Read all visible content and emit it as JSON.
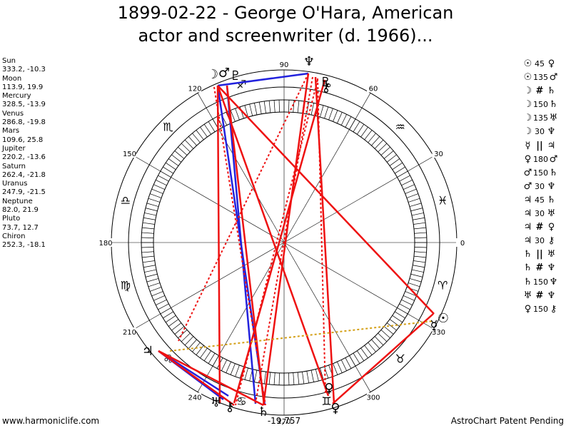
{
  "title": {
    "line1": "1899-02-22 - George O'Hara, American",
    "line2": "actor and screenwriter (d. 1966)..."
  },
  "planets": [
    {
      "name": "Sun",
      "pos": "333.2, -10.3"
    },
    {
      "name": "Moon",
      "pos": "113.9, 19.9"
    },
    {
      "name": "Mercury",
      "pos": "328.5, -13.9"
    },
    {
      "name": "Venus",
      "pos": "286.8, -19.8"
    },
    {
      "name": "Mars",
      "pos": "109.6, 25.8"
    },
    {
      "name": "Jupiter",
      "pos": "220.2, -13.6"
    },
    {
      "name": "Saturn",
      "pos": "262.4, -21.8"
    },
    {
      "name": "Uranus",
      "pos": "247.9, -21.5"
    },
    {
      "name": "Neptune",
      "pos": "82.0, 21.9"
    },
    {
      "name": "Pluto",
      "pos": "73.7, 12.7"
    },
    {
      "name": "Chiron",
      "pos": "252.3, -18.1"
    }
  ],
  "aspects": [
    {
      "p1": "☉",
      "angle": "45",
      "p2": "♀"
    },
    {
      "p1": "☉",
      "angle": "135",
      "p2": "♂"
    },
    {
      "p1": "☽",
      "angle": "#",
      "p2": "♄"
    },
    {
      "p1": "☽",
      "angle": "150",
      "p2": "♄"
    },
    {
      "p1": "☽",
      "angle": "135",
      "p2": "♅"
    },
    {
      "p1": "☽",
      "angle": "30",
      "p2": "♆"
    },
    {
      "p1": "☿",
      "angle": "||",
      "p2": "♃"
    },
    {
      "p1": "♀",
      "angle": "180",
      "p2": "♂"
    },
    {
      "p1": "♂",
      "angle": "150",
      "p2": "♄"
    },
    {
      "p1": "♂",
      "angle": "30",
      "p2": "♆"
    },
    {
      "p1": "♃",
      "angle": "45",
      "p2": "♄"
    },
    {
      "p1": "♃",
      "angle": "30",
      "p2": "♅"
    },
    {
      "p1": "♃",
      "angle": "#",
      "p2": "♀"
    },
    {
      "p1": "♃",
      "angle": "30",
      "p2": "⚷"
    },
    {
      "p1": "♄",
      "angle": "||",
      "p2": "♅"
    },
    {
      "p1": "♄",
      "angle": "#",
      "p2": "♆"
    },
    {
      "p1": "♄",
      "angle": "150",
      "p2": "♆"
    },
    {
      "p1": "♅",
      "angle": "#",
      "p2": "♆"
    },
    {
      "p1": "♀",
      "angle": "150",
      "p2": "⚷"
    }
  ],
  "wheel": {
    "degree_labels": [
      "0",
      "30",
      "60",
      "90",
      "120",
      "150",
      "180",
      "210",
      "240",
      "270",
      "300",
      "330"
    ],
    "zodiac_signs": [
      "♓",
      "♒",
      "♑",
      "♐",
      "♏",
      "♎",
      "♍",
      "♌",
      "♋",
      "♊",
      "♉",
      "♈"
    ],
    "planet_glyphs": {
      "sun": "☉",
      "moon": "☽",
      "mercury": "☿",
      "venus": "♀",
      "mars": "♂",
      "jupiter": "♃",
      "saturn": "♄",
      "uranus": "♅",
      "neptune": "♆",
      "pluto": "♇",
      "chiron": "⚷"
    },
    "bottom_readout": "-19,757"
  },
  "footer": {
    "left": "www.harmoniclife.com",
    "right": "AstroChart Patent Pending"
  },
  "colors": {
    "red_aspect": "#ee1111",
    "blue_aspect": "#2222dd",
    "gold_aspect": "#d4a017"
  }
}
